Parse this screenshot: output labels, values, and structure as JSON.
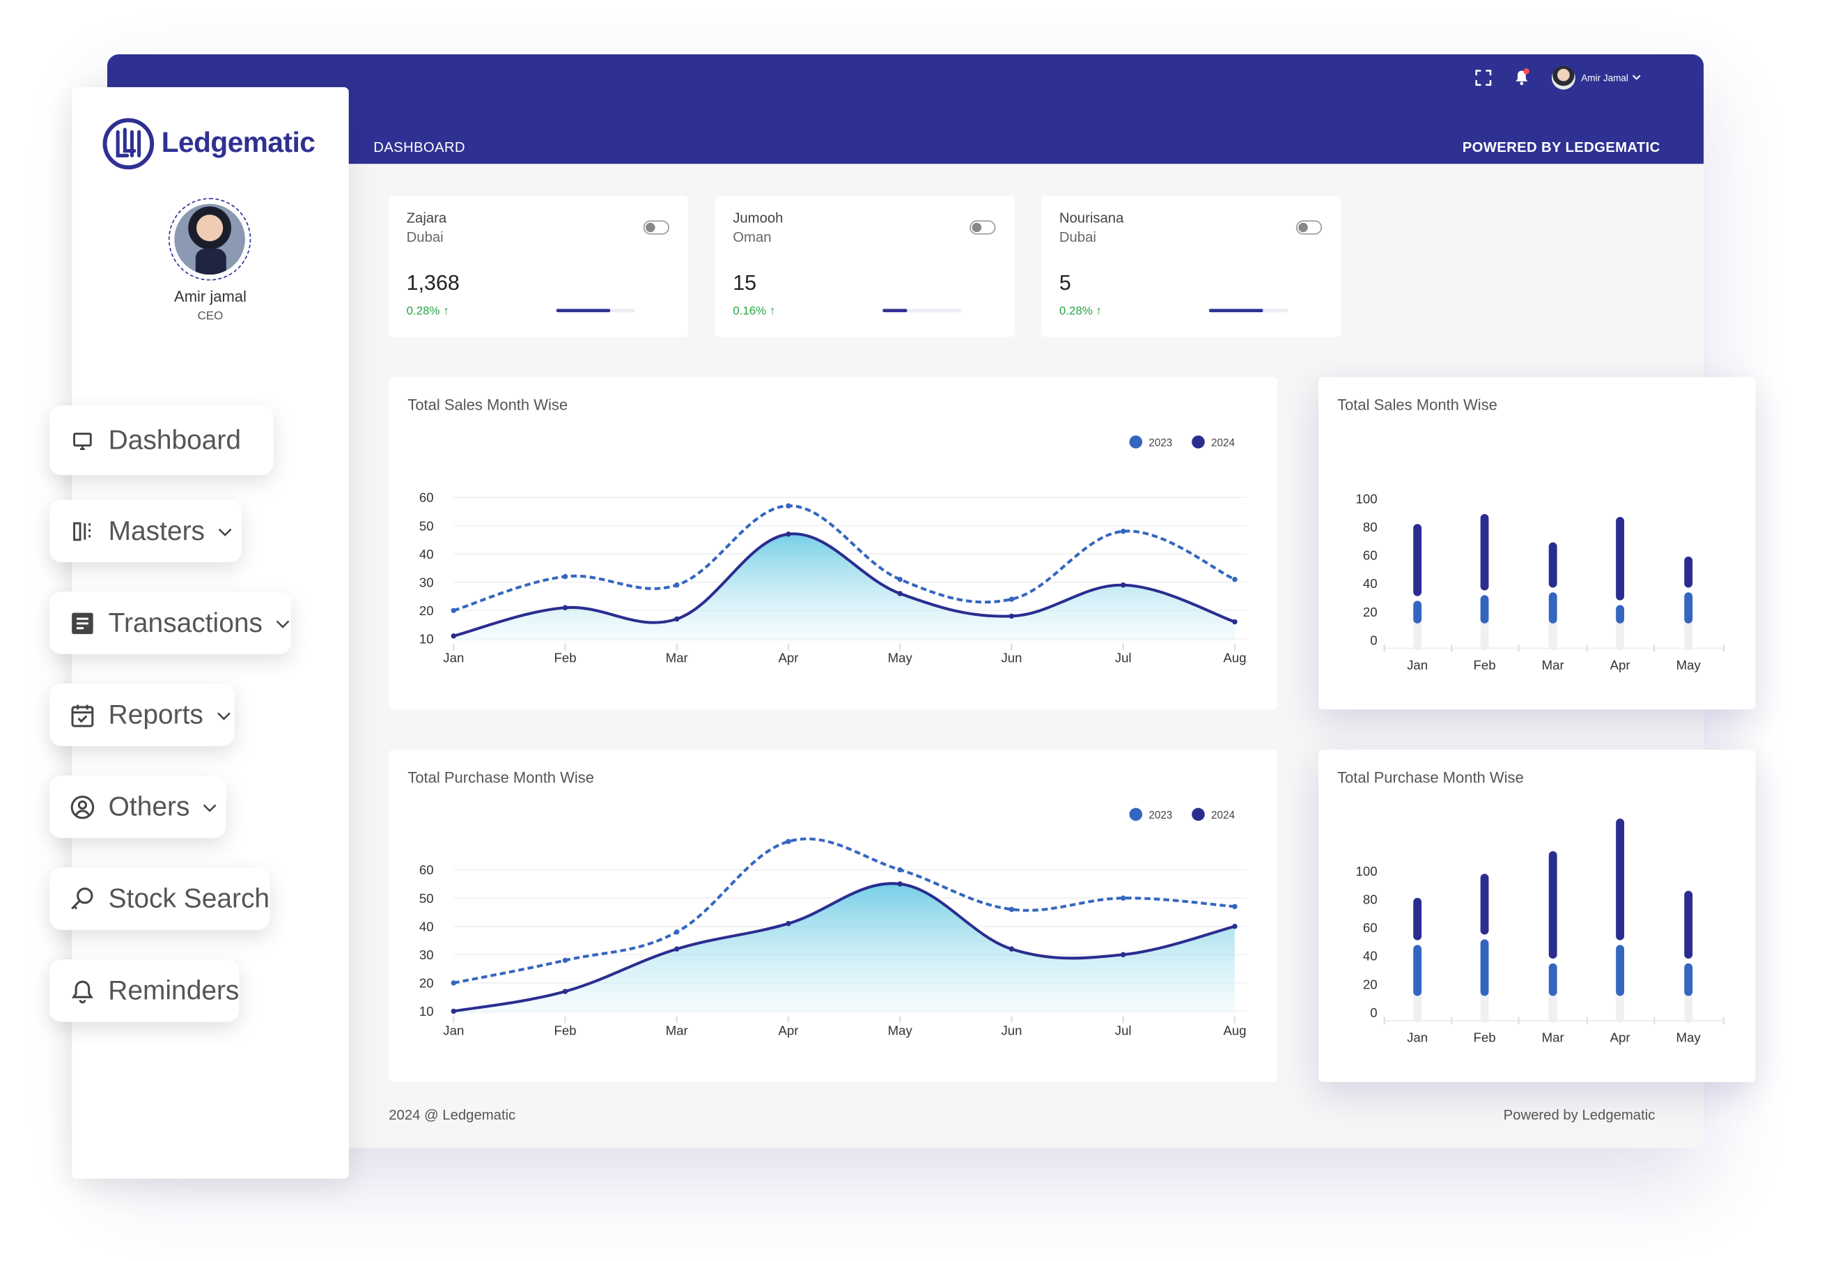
{
  "brand": {
    "name": "Ledgematic"
  },
  "header": {
    "breadcrumb": "DASHBOARD",
    "powered": "POWERED BY LEDGEMATIC",
    "user_name": "Amir Jamal"
  },
  "profile": {
    "name": "Amir jamal",
    "role": "CEO"
  },
  "nav": [
    {
      "label": "Dashboard",
      "icon": "monitor-icon",
      "has_chevron": false
    },
    {
      "label": "Masters",
      "icon": "columns-icon",
      "has_chevron": true
    },
    {
      "label": "Transactions",
      "icon": "document-list-icon",
      "has_chevron": true
    },
    {
      "label": "Reports",
      "icon": "calendar-check-icon",
      "has_chevron": true
    },
    {
      "label": "Others",
      "icon": "user-circle-icon",
      "has_chevron": true
    },
    {
      "label": "Stock Search",
      "icon": "key-search-icon",
      "has_chevron": false
    },
    {
      "label": "Reminders",
      "icon": "bell-icon",
      "has_chevron": false
    }
  ],
  "stats": [
    {
      "name": "Zajara",
      "location": "Dubai",
      "value": "1,368",
      "change": "0.28%",
      "progress": 0.68
    },
    {
      "name": "Jumooh",
      "location": "Oman",
      "value": "15",
      "change": "0.16%",
      "progress": 0.32
    },
    {
      "name": "Nourisana",
      "location": "Dubai",
      "value": "5",
      "change": "0.28%",
      "progress": 0.68
    }
  ],
  "colors": {
    "primary": "#2e3192",
    "series_2023": "#3466c0",
    "series_2024": "#2a2d8f",
    "positive": "#29a745"
  },
  "chart_data": [
    {
      "type": "area",
      "title": "Total Sales Month Wise",
      "categories": [
        "Jan",
        "Feb",
        "Mar",
        "Apr",
        "May",
        "Jun",
        "Jul",
        "Aug"
      ],
      "y_ticks": [
        60,
        50,
        40,
        30,
        20,
        10
      ],
      "ylim": [
        10,
        60
      ],
      "legend": "top-right",
      "series": [
        {
          "name": "2023",
          "style": "dashed",
          "values": [
            20,
            32,
            29,
            57,
            31,
            24,
            48,
            31
          ]
        },
        {
          "name": "2024",
          "style": "solid",
          "fill": true,
          "values": [
            11,
            21,
            17,
            47,
            26,
            18,
            29,
            16
          ]
        }
      ]
    },
    {
      "type": "bar",
      "title": "Total Sales Month Wise",
      "categories": [
        "Jan",
        "Feb",
        "Mar",
        "Apr",
        "May"
      ],
      "y_ticks": [
        100,
        80,
        60,
        40,
        20,
        0
      ],
      "ylim": [
        0,
        100
      ],
      "series": [
        {
          "name": "2023",
          "values": [
            16,
            20,
            22,
            13,
            22
          ]
        },
        {
          "name": "2024",
          "values": [
            51,
            54,
            32,
            59,
            22
          ]
        }
      ]
    },
    {
      "type": "area",
      "title": "Total Purchase Month Wise",
      "categories": [
        "Jan",
        "Feb",
        "Mar",
        "Apr",
        "May",
        "Jun",
        "Jul",
        "Aug"
      ],
      "y_ticks": [
        60,
        50,
        40,
        30,
        20,
        10
      ],
      "ylim": [
        10,
        60
      ],
      "legend": "top-right",
      "series": [
        {
          "name": "2023",
          "style": "dashed",
          "values": [
            20,
            28,
            38,
            70,
            60,
            46,
            50,
            47
          ]
        },
        {
          "name": "2024",
          "style": "solid",
          "fill": true,
          "values": [
            10,
            17,
            32,
            41,
            55,
            32,
            30,
            40
          ]
        }
      ]
    },
    {
      "type": "bar",
      "title": "Total Purchase Month Wise",
      "categories": [
        "Jan",
        "Feb",
        "Mar",
        "Apr",
        "May"
      ],
      "y_ticks": [
        100,
        80,
        60,
        40,
        20,
        0
      ],
      "ylim": [
        0,
        100
      ],
      "series": [
        {
          "name": "2023",
          "values": [
            36,
            40,
            23,
            36,
            23
          ]
        },
        {
          "name": "2024",
          "values": [
            30,
            43,
            76,
            86,
            48
          ]
        }
      ]
    }
  ],
  "footer": {
    "left": "2024 @ Ledgematic",
    "right": "Powered by Ledgematic"
  }
}
